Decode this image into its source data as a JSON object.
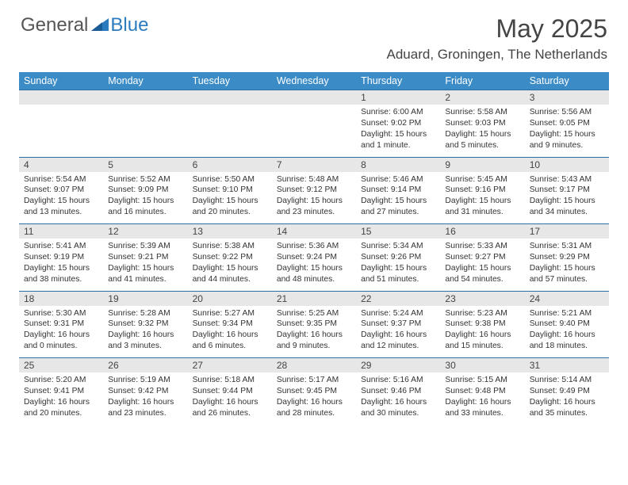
{
  "logo": {
    "text1": "General",
    "text2": "Blue"
  },
  "title": "May 2025",
  "location": "Aduard, Groningen, The Netherlands",
  "colors": {
    "header_bg": "#3b8bc7",
    "daynum_bg": "#e7e7e7",
    "row_border": "#2b6fa8",
    "logo_blue": "#2b7bbf"
  },
  "weekdays": [
    "Sunday",
    "Monday",
    "Tuesday",
    "Wednesday",
    "Thursday",
    "Friday",
    "Saturday"
  ],
  "weeks": [
    [
      null,
      null,
      null,
      null,
      {
        "d": "1",
        "sr": "6:00 AM",
        "ss": "9:02 PM",
        "dl": "15 hours and 1 minute."
      },
      {
        "d": "2",
        "sr": "5:58 AM",
        "ss": "9:03 PM",
        "dl": "15 hours and 5 minutes."
      },
      {
        "d": "3",
        "sr": "5:56 AM",
        "ss": "9:05 PM",
        "dl": "15 hours and 9 minutes."
      }
    ],
    [
      {
        "d": "4",
        "sr": "5:54 AM",
        "ss": "9:07 PM",
        "dl": "15 hours and 13 minutes."
      },
      {
        "d": "5",
        "sr": "5:52 AM",
        "ss": "9:09 PM",
        "dl": "15 hours and 16 minutes."
      },
      {
        "d": "6",
        "sr": "5:50 AM",
        "ss": "9:10 PM",
        "dl": "15 hours and 20 minutes."
      },
      {
        "d": "7",
        "sr": "5:48 AM",
        "ss": "9:12 PM",
        "dl": "15 hours and 23 minutes."
      },
      {
        "d": "8",
        "sr": "5:46 AM",
        "ss": "9:14 PM",
        "dl": "15 hours and 27 minutes."
      },
      {
        "d": "9",
        "sr": "5:45 AM",
        "ss": "9:16 PM",
        "dl": "15 hours and 31 minutes."
      },
      {
        "d": "10",
        "sr": "5:43 AM",
        "ss": "9:17 PM",
        "dl": "15 hours and 34 minutes."
      }
    ],
    [
      {
        "d": "11",
        "sr": "5:41 AM",
        "ss": "9:19 PM",
        "dl": "15 hours and 38 minutes."
      },
      {
        "d": "12",
        "sr": "5:39 AM",
        "ss": "9:21 PM",
        "dl": "15 hours and 41 minutes."
      },
      {
        "d": "13",
        "sr": "5:38 AM",
        "ss": "9:22 PM",
        "dl": "15 hours and 44 minutes."
      },
      {
        "d": "14",
        "sr": "5:36 AM",
        "ss": "9:24 PM",
        "dl": "15 hours and 48 minutes."
      },
      {
        "d": "15",
        "sr": "5:34 AM",
        "ss": "9:26 PM",
        "dl": "15 hours and 51 minutes."
      },
      {
        "d": "16",
        "sr": "5:33 AM",
        "ss": "9:27 PM",
        "dl": "15 hours and 54 minutes."
      },
      {
        "d": "17",
        "sr": "5:31 AM",
        "ss": "9:29 PM",
        "dl": "15 hours and 57 minutes."
      }
    ],
    [
      {
        "d": "18",
        "sr": "5:30 AM",
        "ss": "9:31 PM",
        "dl": "16 hours and 0 minutes."
      },
      {
        "d": "19",
        "sr": "5:28 AM",
        "ss": "9:32 PM",
        "dl": "16 hours and 3 minutes."
      },
      {
        "d": "20",
        "sr": "5:27 AM",
        "ss": "9:34 PM",
        "dl": "16 hours and 6 minutes."
      },
      {
        "d": "21",
        "sr": "5:25 AM",
        "ss": "9:35 PM",
        "dl": "16 hours and 9 minutes."
      },
      {
        "d": "22",
        "sr": "5:24 AM",
        "ss": "9:37 PM",
        "dl": "16 hours and 12 minutes."
      },
      {
        "d": "23",
        "sr": "5:23 AM",
        "ss": "9:38 PM",
        "dl": "16 hours and 15 minutes."
      },
      {
        "d": "24",
        "sr": "5:21 AM",
        "ss": "9:40 PM",
        "dl": "16 hours and 18 minutes."
      }
    ],
    [
      {
        "d": "25",
        "sr": "5:20 AM",
        "ss": "9:41 PM",
        "dl": "16 hours and 20 minutes."
      },
      {
        "d": "26",
        "sr": "5:19 AM",
        "ss": "9:42 PM",
        "dl": "16 hours and 23 minutes."
      },
      {
        "d": "27",
        "sr": "5:18 AM",
        "ss": "9:44 PM",
        "dl": "16 hours and 26 minutes."
      },
      {
        "d": "28",
        "sr": "5:17 AM",
        "ss": "9:45 PM",
        "dl": "16 hours and 28 minutes."
      },
      {
        "d": "29",
        "sr": "5:16 AM",
        "ss": "9:46 PM",
        "dl": "16 hours and 30 minutes."
      },
      {
        "d": "30",
        "sr": "5:15 AM",
        "ss": "9:48 PM",
        "dl": "16 hours and 33 minutes."
      },
      {
        "d": "31",
        "sr": "5:14 AM",
        "ss": "9:49 PM",
        "dl": "16 hours and 35 minutes."
      }
    ]
  ],
  "labels": {
    "sunrise": "Sunrise: ",
    "sunset": "Sunset: ",
    "daylight": "Daylight: "
  }
}
